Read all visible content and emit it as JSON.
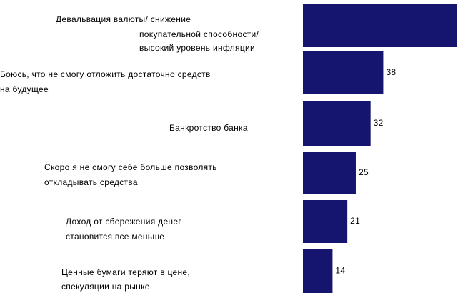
{
  "chart_data": {
    "type": "barh",
    "categories": [
      [
        "Девальвация валюты/ снижение",
        "покупательной способности/",
        "высокий уровень инфляции"
      ],
      [
        "Боюсь, что не смогу отложить достаточно средств",
        "на будущее"
      ],
      [
        "Банкротство банка"
      ],
      [
        "Скоро я не смогу себе больше позволять",
        "откладывать средства"
      ],
      [
        "Доход от сбережения денег",
        "становится все меньше"
      ],
      [
        "Ценные бумаги теряют в цене,",
        "спекуляции на рынке"
      ]
    ],
    "values": [
      73,
      38,
      32,
      25,
      21,
      14
    ],
    "value_labels": [
      null,
      "38",
      "32",
      "25",
      "21",
      "14"
    ],
    "color": "#15146f",
    "xlim": [
      0,
      73
    ]
  }
}
